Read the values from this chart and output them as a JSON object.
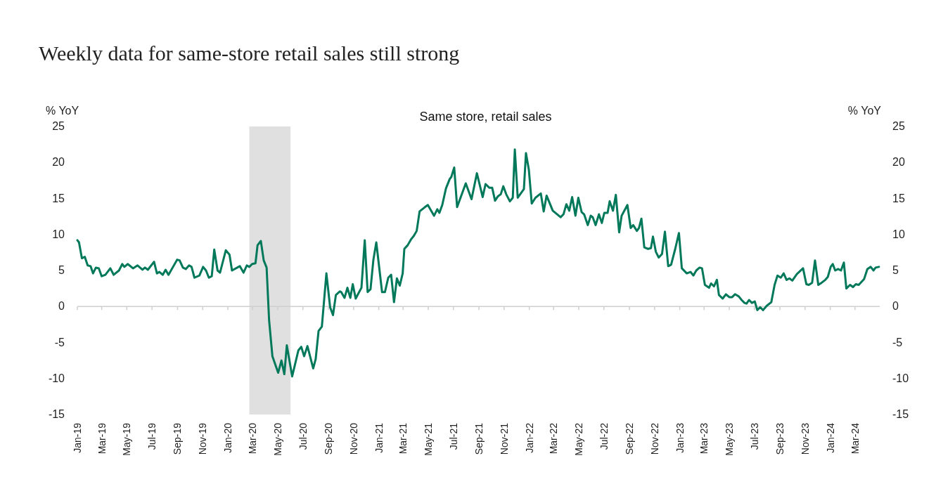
{
  "chart_data": {
    "type": "line",
    "title": "Weekly data for same-store retail sales still strong",
    "subtitle": "Same store, retail sales",
    "ylabel": "% YoY",
    "y2label": "% YoY",
    "xlim": [
      "2019-01-01",
      "2024-04-30"
    ],
    "ylim": [
      -15,
      25
    ],
    "yticks": [
      -15,
      -10,
      -5,
      0,
      5,
      10,
      15,
      20,
      25
    ],
    "y2lim": [
      -15,
      25
    ],
    "y2ticks": [
      -15,
      -10,
      -5,
      0,
      5,
      10,
      15,
      20,
      25
    ],
    "xticks": [
      {
        "value": "2019-01",
        "label": "Jan-19"
      },
      {
        "value": "2019-03",
        "label": "Mar-19"
      },
      {
        "value": "2019-05",
        "label": "May-19"
      },
      {
        "value": "2019-07",
        "label": "Jul-19"
      },
      {
        "value": "2019-09",
        "label": "Sep-19"
      },
      {
        "value": "2019-11",
        "label": "Nov-19"
      },
      {
        "value": "2020-01",
        "label": "Jan-20"
      },
      {
        "value": "2020-03",
        "label": "Mar-20"
      },
      {
        "value": "2020-05",
        "label": "May-20"
      },
      {
        "value": "2020-07",
        "label": "Jul-20"
      },
      {
        "value": "2020-09",
        "label": "Sep-20"
      },
      {
        "value": "2020-11",
        "label": "Nov-20"
      },
      {
        "value": "2021-01",
        "label": "Jan-21"
      },
      {
        "value": "2021-03",
        "label": "Mar-21"
      },
      {
        "value": "2021-05",
        "label": "May-21"
      },
      {
        "value": "2021-07",
        "label": "Jul-21"
      },
      {
        "value": "2021-09",
        "label": "Sep-21"
      },
      {
        "value": "2021-11",
        "label": "Nov-21"
      },
      {
        "value": "2022-01",
        "label": "Jan-22"
      },
      {
        "value": "2022-03",
        "label": "Mar-22"
      },
      {
        "value": "2022-05",
        "label": "May-22"
      },
      {
        "value": "2022-07",
        "label": "Jul-22"
      },
      {
        "value": "2022-09",
        "label": "Sep-22"
      },
      {
        "value": "2022-11",
        "label": "Nov-22"
      },
      {
        "value": "2023-01",
        "label": "Jan-23"
      },
      {
        "value": "2023-03",
        "label": "Mar-23"
      },
      {
        "value": "2023-05",
        "label": "May-23"
      },
      {
        "value": "2023-07",
        "label": "Jul-23"
      },
      {
        "value": "2023-09",
        "label": "Sep-23"
      },
      {
        "value": "2023-11",
        "label": "Nov-23"
      },
      {
        "value": "2024-01",
        "label": "Jan-24"
      },
      {
        "value": "2024-03",
        "label": "Mar-24"
      }
    ],
    "bands": [
      {
        "axis": "x",
        "from": "2020-02-22",
        "to": "2020-06-01",
        "color": "#e0e0e0"
      }
    ],
    "line_style": "solid",
    "marker": "none",
    "x": [
      "2019-01-01",
      "2019-01-05",
      "2019-01-12",
      "2019-01-19",
      "2019-01-26",
      "2019-02-02",
      "2019-02-08",
      "2019-02-15",
      "2019-02-22",
      "2019-03-01",
      "2019-03-10",
      "2019-03-22",
      "2019-03-30",
      "2019-04-12",
      "2019-04-20",
      "2019-04-25",
      "2019-05-03",
      "2019-05-16",
      "2019-05-27",
      "2019-06-08",
      "2019-06-14",
      "2019-06-21",
      "2019-07-06",
      "2019-07-13",
      "2019-07-19",
      "2019-07-27",
      "2019-08-03",
      "2019-08-10",
      "2019-08-31",
      "2019-09-06",
      "2019-09-14",
      "2019-09-21",
      "2019-09-29",
      "2019-10-05",
      "2019-10-12",
      "2019-10-24",
      "2019-11-02",
      "2019-11-09",
      "2019-11-16",
      "2019-11-23",
      "2019-11-29",
      "2019-12-07",
      "2019-12-13",
      "2019-12-27",
      "2020-01-05",
      "2020-01-11",
      "2020-01-30",
      "2020-02-08",
      "2020-02-16",
      "2020-02-22",
      "2020-02-29",
      "2020-03-08",
      "2020-03-13",
      "2020-03-21",
      "2020-03-28",
      "2020-04-04",
      "2020-04-10",
      "2020-04-18",
      "2020-05-02",
      "2020-05-10",
      "2020-05-17",
      "2020-05-23",
      "2020-06-05",
      "2020-06-20",
      "2020-06-27",
      "2020-07-04",
      "2020-07-12",
      "2020-07-26",
      "2020-08-01",
      "2020-08-08",
      "2020-08-16",
      "2020-08-27",
      "2020-09-05",
      "2020-09-12",
      "2020-09-19",
      "2020-09-29",
      "2020-10-02",
      "2020-10-10",
      "2020-10-17",
      "2020-10-24",
      "2020-10-30",
      "2020-11-06",
      "2020-11-20",
      "2020-11-28",
      "2020-12-05",
      "2020-12-12",
      "2020-12-19",
      "2020-12-26",
      "2021-01-09",
      "2021-01-16",
      "2021-01-24",
      "2021-01-31",
      "2021-02-07",
      "2021-02-14",
      "2021-02-21",
      "2021-02-28",
      "2021-03-04",
      "2021-03-12",
      "2021-03-20",
      "2021-03-27",
      "2021-04-03",
      "2021-04-10",
      "2021-04-23",
      "2021-04-30",
      "2021-05-15",
      "2021-05-23",
      "2021-05-28",
      "2021-06-04",
      "2021-06-13",
      "2021-06-22",
      "2021-06-26",
      "2021-07-03",
      "2021-07-10",
      "2021-07-31",
      "2021-08-14",
      "2021-08-27",
      "2021-09-10",
      "2021-09-17",
      "2021-09-26",
      "2021-10-03",
      "2021-10-10",
      "2021-10-17",
      "2021-10-24",
      "2021-10-30",
      "2021-11-06",
      "2021-11-15",
      "2021-11-22",
      "2021-11-27",
      "2021-12-04",
      "2021-12-19",
      "2021-12-24",
      "2021-12-31",
      "2022-01-07",
      "2022-01-16",
      "2022-01-29",
      "2022-02-05",
      "2022-02-12",
      "2022-02-27",
      "2022-03-18",
      "2022-03-25",
      "2022-04-01",
      "2022-04-08",
      "2022-04-15",
      "2022-04-23",
      "2022-04-30",
      "2022-05-08",
      "2022-05-14",
      "2022-05-23",
      "2022-05-30",
      "2022-06-04",
      "2022-06-11",
      "2022-06-19",
      "2022-06-26",
      "2022-07-02",
      "2022-07-10",
      "2022-07-15",
      "2022-07-23",
      "2022-07-30",
      "2022-08-07",
      "2022-08-13",
      "2022-08-27",
      "2022-09-04",
      "2022-09-10",
      "2022-09-19",
      "2022-09-24",
      "2022-09-30",
      "2022-10-07",
      "2022-10-16",
      "2022-10-23",
      "2022-10-28",
      "2022-11-04",
      "2022-11-11",
      "2022-11-19",
      "2022-11-26",
      "2022-12-04",
      "2022-12-11",
      "2022-12-21",
      "2022-12-30",
      "2023-01-06",
      "2023-01-18",
      "2023-01-27",
      "2023-02-03",
      "2023-02-10",
      "2023-02-18",
      "2023-02-24",
      "2023-03-03",
      "2023-03-13",
      "2023-03-18",
      "2023-03-25",
      "2023-04-01",
      "2023-04-06",
      "2023-04-15",
      "2023-04-23",
      "2023-05-01",
      "2023-05-08",
      "2023-05-15",
      "2023-05-24",
      "2023-05-31",
      "2023-06-07",
      "2023-06-12",
      "2023-06-18",
      "2023-06-25",
      "2023-07-02",
      "2023-07-08",
      "2023-07-15",
      "2023-07-22",
      "2023-07-31",
      "2023-08-11",
      "2023-08-19",
      "2023-08-26",
      "2023-09-03",
      "2023-09-10",
      "2023-09-17",
      "2023-09-24",
      "2023-10-01",
      "2023-10-12",
      "2023-10-27",
      "2023-11-04",
      "2023-11-10",
      "2023-11-18",
      "2023-11-25",
      "2023-12-03",
      "2023-12-11",
      "2023-12-20",
      "2023-12-26",
      "2024-01-02",
      "2024-01-07",
      "2024-01-13",
      "2024-01-20",
      "2024-01-27",
      "2024-02-03",
      "2024-02-09",
      "2024-02-18",
      "2024-02-25",
      "2024-03-03",
      "2024-03-10",
      "2024-03-23",
      "2024-03-31",
      "2024-04-08",
      "2024-04-15",
      "2024-04-20",
      "2024-04-28"
    ],
    "series": [
      {
        "color": "#00785a",
        "values": [
          9.2,
          8.9,
          6.7,
          6.9,
          5.7,
          5.6,
          4.6,
          5.4,
          5.3,
          4.2,
          4.4,
          5.3,
          4.4,
          5.0,
          5.9,
          5.5,
          5.9,
          5.3,
          5.7,
          5.1,
          5.4,
          5.1,
          6.2,
          4.6,
          4.8,
          4.4,
          5.1,
          4.4,
          6.5,
          6.4,
          5.4,
          5.2,
          5.7,
          5.5,
          4.0,
          4.3,
          5.5,
          5.0,
          4.0,
          4.2,
          7.9,
          5.0,
          4.7,
          7.8,
          7.2,
          5.0,
          5.6,
          4.7,
          5.7,
          5.5,
          5.9,
          6.0,
          8.5,
          9.1,
          6.4,
          5.4,
          -1.9,
          -6.9,
          -9.2,
          -7.5,
          -9.4,
          -5.4,
          -9.7,
          -6.1,
          -5.6,
          -6.9,
          -5.5,
          -8.6,
          -7.3,
          -3.4,
          -2.8,
          4.6,
          -0.1,
          -1.2,
          1.6,
          2.1,
          2.0,
          1.2,
          2.6,
          1.2,
          3.1,
          1.1,
          2.6,
          9.2,
          2.0,
          2.4,
          6.5,
          8.9,
          2.0,
          2.0,
          4.0,
          4.4,
          0.6,
          3.9,
          2.9,
          4.6,
          8.0,
          8.5,
          9.3,
          9.8,
          10.5,
          13.2,
          13.8,
          14.1,
          12.6,
          13.5,
          13.0,
          14.1,
          16.4,
          17.7,
          18.0,
          19.3,
          13.8,
          17.1,
          14.9,
          18.5,
          15.2,
          17.0,
          16.5,
          16.5,
          14.7,
          15.3,
          15.6,
          16.7,
          15.6,
          14.6,
          15.1,
          21.8,
          15.1,
          16.3,
          21.3,
          19.0,
          14.3,
          15.1,
          15.7,
          13.2,
          15.4,
          13.3,
          12.4,
          12.8,
          14.2,
          13.3,
          15.2,
          12.6,
          15.1,
          13.1,
          12.8,
          11.3,
          12.6,
          12.4,
          11.3,
          12.8,
          11.6,
          13.0,
          13.0,
          14.6,
          13.3,
          15.5,
          10.3,
          12.6,
          14.1,
          10.9,
          11.3,
          10.5,
          10.9,
          12.2,
          8.2,
          8.0,
          8.1,
          9.7,
          7.6,
          6.8,
          7.3,
          10.4,
          5.6,
          5.8,
          8.0,
          10.2,
          5.3,
          4.6,
          4.8,
          4.3,
          5.0,
          5.4,
          5.3,
          3.0,
          2.6,
          3.2,
          2.8,
          3.7,
          1.6,
          1.1,
          1.7,
          1.3,
          1.3,
          1.7,
          1.4,
          0.9,
          0.5,
          0.4,
          0.9,
          0.5,
          0.7,
          -0.5,
          -0.1,
          -0.5,
          0.1,
          0.6,
          3.0,
          4.3,
          4.0,
          4.6,
          3.7,
          3.9,
          3.6,
          4.5,
          5.3,
          3.1,
          3.0,
          3.3,
          6.4,
          3.0,
          3.3,
          3.7,
          4.1,
          5.5,
          5.9,
          5.0,
          5.2,
          5.0,
          6.1,
          2.5,
          3.0,
          2.7,
          3.1,
          3.0,
          3.8,
          5.2,
          5.5,
          5.0,
          5.4,
          5.5
        ]
      }
    ]
  }
}
